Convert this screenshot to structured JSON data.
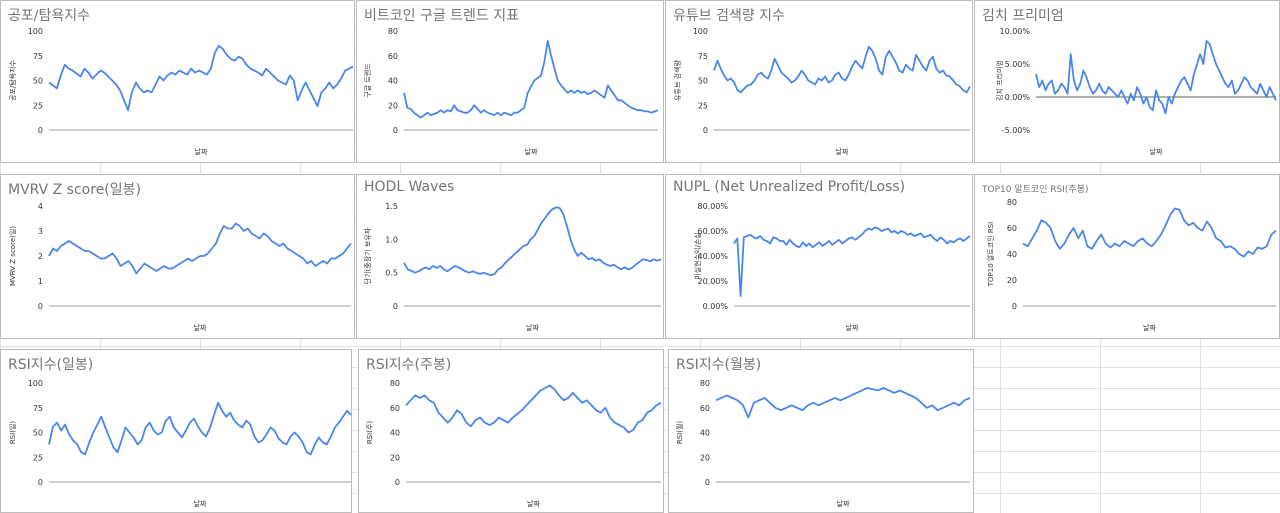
{
  "sheet": {
    "grid_color": "#e2e2e2",
    "background": "#ffffff"
  },
  "line_color": "#4a86e8",
  "charts": [
    {
      "title": "공포/탐욕지수",
      "chart_data": {
        "type": "line",
        "title": "공포/탐욕지수",
        "xlabel": "날짜",
        "ylabel": "공포/탐욕지수",
        "ylim": [
          0,
          100
        ],
        "yticks": [
          "0",
          "25",
          "50",
          "75",
          "100"
        ],
        "series": [
          {
            "values": [
              48,
              45,
              42,
              55,
              66,
              62,
              60,
              57,
              54,
              62,
              58,
              52,
              56,
              60,
              58,
              54,
              50,
              46,
              40,
              30,
              20,
              38,
              48,
              42,
              38,
              40,
              38,
              46,
              54,
              50,
              55,
              58,
              56,
              60,
              58,
              56,
              62,
              58,
              60,
              58,
              56,
              62,
              78,
              85,
              82,
              76,
              72,
              70,
              74,
              72,
              66,
              62,
              60,
              58,
              55,
              62,
              58,
              54,
              50,
              48,
              46,
              55,
              50,
              30,
              40,
              48,
              40,
              32,
              24,
              38,
              42,
              48,
              42,
              46,
              52,
              60,
              62,
              64
            ]
          }
        ]
      }
    },
    {
      "title": "비트코인 구글 트렌드 지표",
      "chart_data": {
        "type": "line",
        "title": "비트코인 구글 트렌드 지표",
        "xlabel": "날짜",
        "ylabel": "구글 트렌드",
        "ylim": [
          0,
          80
        ],
        "yticks": [
          "0",
          "20",
          "40",
          "60",
          "80"
        ],
        "series": [
          {
            "values": [
              30,
              18,
              17,
              14,
              12,
              10,
              12,
              14,
              12,
              13,
              14,
              16,
              14,
              16,
              15,
              20,
              16,
              15,
              14,
              14,
              16,
              20,
              17,
              14,
              16,
              14,
              13,
              12,
              14,
              12,
              14,
              13,
              12,
              14,
              14,
              16,
              18,
              30,
              35,
              40,
              42,
              44,
              55,
              72,
              60,
              50,
              40,
              36,
              33,
              30,
              32,
              30,
              32,
              30,
              31,
              29,
              30,
              32,
              30,
              28,
              26,
              36,
              32,
              28,
              24,
              24,
              22,
              20,
              18,
              17,
              16,
              16,
              15,
              15,
              14,
              15,
              16
            ]
          }
        ]
      }
    },
    {
      "title": "유튜브 검색량 지수",
      "chart_data": {
        "type": "line",
        "title": "유튜브 검색량 지수",
        "xlabel": "날짜",
        "ylabel": "유튜브 검색량",
        "ylim": [
          0,
          100
        ],
        "yticks": [
          "0",
          "25",
          "50",
          "75",
          "100"
        ],
        "series": [
          {
            "values": [
              60,
              70,
              62,
              55,
              50,
              52,
              48,
              40,
              38,
              42,
              45,
              46,
              50,
              56,
              58,
              54,
              52,
              60,
              72,
              65,
              58,
              55,
              52,
              48,
              50,
              54,
              60,
              56,
              50,
              48,
              46,
              52,
              50,
              54,
              48,
              50,
              56,
              58,
              52,
              50,
              56,
              64,
              70,
              66,
              62,
              74,
              84,
              80,
              72,
              60,
              56,
              74,
              80,
              74,
              68,
              60,
              58,
              66,
              62,
              60,
              76,
              70,
              64,
              60,
              70,
              74,
              62,
              58,
              60,
              55,
              54,
              50,
              46,
              44,
              40,
              38,
              44
            ]
          }
        ]
      }
    },
    {
      "title": "김치 프리미엄",
      "chart_data": {
        "type": "line",
        "title": "김치 프리미엄",
        "xlabel": "날짜",
        "ylabel": "김치 프리미엄",
        "ylim": [
          -5,
          10
        ],
        "yticks": [
          "-5.00%",
          "0.00%",
          "5.00%",
          "10.00%"
        ],
        "series": [
          {
            "values": [
              3.5,
              1.5,
              2.5,
              1.0,
              2.0,
              2.5,
              0.5,
              1.0,
              2.0,
              1.5,
              0.5,
              6.5,
              2.5,
              1.0,
              2.0,
              4.0,
              3.0,
              1.5,
              0.5,
              1.0,
              2.0,
              1.0,
              0.5,
              1.5,
              1.0,
              0.5,
              0.0,
              1.0,
              0.0,
              -1.0,
              0.5,
              -0.5,
              1.5,
              0.5,
              -1.0,
              0.0,
              -1.5,
              -2.0,
              1.0,
              -0.5,
              -1.0,
              -2.5,
              0.0,
              -1.0,
              0.5,
              1.5,
              2.5,
              3.0,
              2.0,
              1.0,
              3.5,
              5.0,
              6.5,
              5.0,
              8.5,
              8.0,
              6.5,
              5.0,
              4.0,
              3.0,
              2.0,
              1.5,
              2.5,
              0.5,
              1.0,
              2.0,
              3.0,
              2.5,
              1.5,
              1.0,
              0.5,
              2.0,
              1.0,
              0.0,
              1.5,
              0.5,
              -0.5
            ]
          }
        ]
      }
    },
    {
      "title": "MVRV Z score(일봉)",
      "chart_data": {
        "type": "line",
        "title": "MVRV Z score(일봉)",
        "xlabel": "날짜",
        "ylabel": "MVRV Z score(일)",
        "ylim": [
          0,
          4
        ],
        "yticks": [
          "0",
          "1",
          "2",
          "3",
          "4"
        ],
        "series": [
          {
            "values": [
              2.0,
              2.3,
              2.2,
              2.4,
              2.5,
              2.6,
              2.5,
              2.4,
              2.3,
              2.2,
              2.2,
              2.1,
              2.0,
              1.9,
              1.9,
              2.0,
              2.1,
              1.9,
              1.6,
              1.7,
              1.8,
              1.6,
              1.3,
              1.5,
              1.7,
              1.6,
              1.5,
              1.4,
              1.5,
              1.6,
              1.5,
              1.5,
              1.6,
              1.7,
              1.8,
              1.9,
              1.8,
              1.9,
              2.0,
              2.0,
              2.1,
              2.3,
              2.5,
              2.9,
              3.2,
              3.1,
              3.1,
              3.3,
              3.2,
              3.0,
              3.1,
              2.9,
              2.8,
              2.7,
              2.9,
              2.8,
              2.6,
              2.5,
              2.4,
              2.5,
              2.3,
              2.2,
              2.1,
              2.0,
              1.9,
              1.7,
              1.8,
              1.6,
              1.7,
              1.8,
              1.7,
              1.9,
              1.9,
              2.0,
              2.1,
              2.3,
              2.5
            ]
          }
        ]
      }
    },
    {
      "title": "HODL Waves",
      "chart_data": {
        "type": "line",
        "title": "HODL Waves",
        "xlabel": "날짜",
        "ylabel": "단기(중장기 보유자",
        "ylim": [
          0,
          1.5
        ],
        "yticks": [
          "0",
          "0.5",
          "1.0",
          "1.5"
        ],
        "series": [
          {
            "values": [
              0.65,
              0.55,
              0.53,
              0.5,
              0.52,
              0.55,
              0.58,
              0.55,
              0.6,
              0.57,
              0.6,
              0.55,
              0.52,
              0.56,
              0.6,
              0.58,
              0.55,
              0.52,
              0.5,
              0.52,
              0.5,
              0.48,
              0.5,
              0.48,
              0.46,
              0.48,
              0.55,
              0.58,
              0.65,
              0.7,
              0.75,
              0.8,
              0.85,
              0.9,
              0.92,
              1.0,
              1.05,
              1.15,
              1.25,
              1.32,
              1.4,
              1.45,
              1.48,
              1.47,
              1.38,
              1.2,
              1.0,
              0.85,
              0.75,
              0.8,
              0.75,
              0.7,
              0.72,
              0.68,
              0.7,
              0.65,
              0.62,
              0.6,
              0.62,
              0.58,
              0.55,
              0.58,
              0.55,
              0.57,
              0.62,
              0.66,
              0.7,
              0.69,
              0.67,
              0.7,
              0.68,
              0.7
            ]
          }
        ]
      }
    },
    {
      "title": "NUPL (Net Unrealized Profit/Loss)",
      "chart_data": {
        "type": "line",
        "title": "NUPL (Net Unrealized Profit/Loss)",
        "xlabel": "날짜",
        "ylabel": "미실현수익/손실",
        "ylim": [
          0,
          80
        ],
        "yticks": [
          "0.00%",
          "20.00%",
          "40.00%",
          "60.00%",
          "80.00%"
        ],
        "series": [
          {
            "values": [
              50,
              54,
              8,
              55,
              56,
              57,
              55,
              54,
              56,
              53,
              52,
              50,
              55,
              54,
              52,
              52,
              49,
              53,
              50,
              48,
              47,
              51,
              48,
              50,
              47,
              49,
              51,
              48,
              50,
              52,
              49,
              51,
              53,
              50,
              52,
              54,
              55,
              53,
              55,
              57,
              60,
              62,
              61,
              63,
              62,
              60,
              61,
              62,
              59,
              60,
              58,
              60,
              59,
              57,
              58,
              56,
              57,
              58,
              55,
              56,
              57,
              54,
              52,
              55,
              53,
              50,
              52,
              51,
              53,
              54,
              52,
              54,
              56
            ]
          }
        ]
      }
    },
    {
      "title": "TOP10 알트코인 RSI(주봉)",
      "chart_data": {
        "type": "line",
        "title": "TOP10 알트코인 RSI(주봉)",
        "xlabel": "날짜",
        "ylabel": "TOP10 알트코인 RSI",
        "ylim": [
          0,
          80
        ],
        "yticks": [
          "0",
          "20",
          "40",
          "60",
          "80"
        ],
        "series": [
          {
            "values": [
              48,
              46,
              52,
              58,
              66,
              64,
              60,
              50,
              44,
              48,
              55,
              60,
              52,
              58,
              46,
              44,
              50,
              55,
              48,
              45,
              48,
              46,
              50,
              48,
              46,
              50,
              52,
              48,
              46,
              50,
              55,
              62,
              70,
              75,
              74,
              66,
              62,
              64,
              60,
              58,
              65,
              60,
              52,
              50,
              45,
              46,
              44,
              40,
              38,
              42,
              40,
              45,
              44,
              46,
              55,
              58
            ]
          }
        ]
      }
    },
    {
      "title": "RSI지수(일봉)",
      "chart_data": {
        "type": "line",
        "title": "RSI지수(일봉)",
        "xlabel": "날짜",
        "ylabel": "RSI(일)",
        "ylim": [
          0,
          100
        ],
        "yticks": [
          "0",
          "25",
          "50",
          "75",
          "100"
        ],
        "series": [
          {
            "values": [
              38,
              56,
              60,
              52,
              58,
              48,
              42,
              38,
              30,
              28,
              40,
              50,
              58,
              66,
              55,
              45,
              35,
              30,
              42,
              55,
              50,
              45,
              38,
              42,
              55,
              60,
              52,
              48,
              50,
              62,
              66,
              55,
              50,
              45,
              52,
              60,
              64,
              56,
              50,
              46,
              55,
              68,
              80,
              72,
              66,
              70,
              62,
              58,
              55,
              62,
              58,
              46,
              40,
              42,
              48,
              55,
              52,
              44,
              40,
              38,
              46,
              50,
              46,
              40,
              30,
              28,
              38,
              45,
              40,
              38,
              46,
              55,
              60,
              66,
              72,
              68
            ]
          }
        ]
      }
    },
    {
      "title": "RSI지수(주봉)",
      "chart_data": {
        "type": "line",
        "title": "RSI지수(주봉)",
        "xlabel": "날짜",
        "ylabel": "RSI(주)",
        "ylim": [
          0,
          80
        ],
        "yticks": [
          "0",
          "20",
          "40",
          "60",
          "80"
        ],
        "series": [
          {
            "values": [
              62,
              66,
              70,
              68,
              70,
              66,
              64,
              56,
              52,
              48,
              52,
              58,
              55,
              48,
              45,
              50,
              52,
              48,
              46,
              48,
              52,
              50,
              48,
              52,
              55,
              58,
              62,
              66,
              70,
              74,
              76,
              78,
              75,
              70,
              66,
              68,
              72,
              68,
              64,
              66,
              62,
              58,
              56,
              60,
              52,
              48,
              46,
              44,
              40,
              42,
              48,
              50,
              56,
              58,
              62,
              64
            ]
          }
        ]
      }
    },
    {
      "title": "RSI지수(월봉)",
      "chart_data": {
        "type": "line",
        "title": "RSI지수(월봉)",
        "xlabel": "날짜",
        "ylabel": "RSI(월)",
        "ylim": [
          0,
          80
        ],
        "yticks": [
          "0",
          "20",
          "40",
          "60",
          "80"
        ],
        "series": [
          {
            "values": [
              66,
              68,
              70,
              68,
              66,
              62,
              52,
              64,
              66,
              68,
              64,
              60,
              58,
              60,
              62,
              60,
              58,
              62,
              64,
              62,
              64,
              66,
              68,
              66,
              68,
              70,
              72,
              74,
              76,
              75,
              74,
              76,
              74,
              72,
              74,
              72,
              70,
              68,
              64,
              60,
              62,
              58,
              60,
              62,
              64,
              62,
              66,
              68
            ]
          }
        ]
      }
    }
  ]
}
